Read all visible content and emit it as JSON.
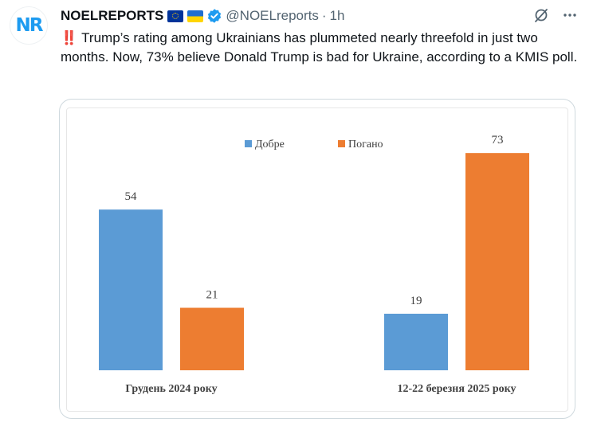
{
  "tweet": {
    "avatar_text": "NR",
    "display_name": "NOELREPORTS",
    "handle": "@NOELreports",
    "separator": "·",
    "time": "1h",
    "text_prefix": "‼️",
    "text": "Trump’s rating among Ukrainians has plummeted nearly threefold in just two months. Now, 73% believe Donald Trump is bad for Ukraine, according to a KMIS poll."
  },
  "icons": {
    "flag_1": "eu-flag-icon",
    "flag_2": "ukraine-flag-icon",
    "verified": "verified-badge-icon",
    "grok": "grok-icon",
    "more": "more-icon"
  },
  "colors": {
    "accent": "#1d9bf0",
    "series_good": "#5b9bd5",
    "series_bad": "#ed7d31"
  },
  "chart_data": {
    "type": "bar",
    "categories": [
      "Грудень 2024 року",
      "12-22 березня 2025 року"
    ],
    "series": [
      {
        "name": "Добре",
        "values": [
          54,
          19
        ]
      },
      {
        "name": "Погано",
        "values": [
          21,
          73
        ]
      }
    ],
    "ylim": [
      0,
      80
    ],
    "legend": "top-center",
    "grid": false,
    "data_labels": true
  }
}
